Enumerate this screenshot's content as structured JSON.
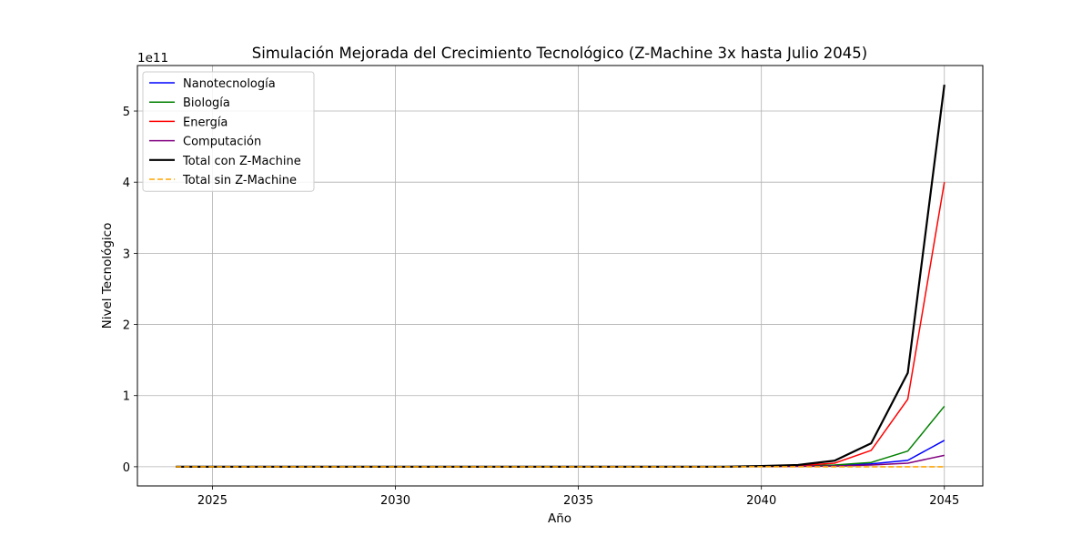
{
  "chart_data": {
    "type": "line",
    "title": "Simulación Mejorada del Crecimiento Tecnológico (Z-Machine 3x hasta Julio 2045)",
    "xlabel": "Año",
    "ylabel": "Nivel Tecnológico",
    "y_offset_label": "1e11",
    "xlim": [
      2022.95,
      2046.05
    ],
    "ylim": [
      -0.27,
      5.64
    ],
    "y_unit_scale": "1e11",
    "xticks": [
      2025,
      2030,
      2035,
      2040,
      2045
    ],
    "yticks": [
      0,
      1,
      2,
      3,
      4,
      5
    ],
    "grid": true,
    "legend_position": "upper-left",
    "x": [
      2024,
      2025,
      2026,
      2027,
      2028,
      2029,
      2030,
      2031,
      2032,
      2033,
      2034,
      2035,
      2036,
      2037,
      2038,
      2039,
      2040,
      2041,
      2042,
      2043,
      2044,
      2045
    ],
    "series": [
      {
        "name": "Nanotecnología",
        "color": "#0000ff",
        "style": "solid",
        "values": [
          0,
          0,
          0,
          0,
          0,
          0,
          0,
          0,
          0,
          0,
          0,
          0,
          0,
          0,
          0,
          0,
          0.003,
          0.008,
          0.02,
          0.04,
          0.09,
          0.37
        ]
      },
      {
        "name": "Biología",
        "color": "#008000",
        "style": "solid",
        "values": [
          0,
          0,
          0,
          0,
          0,
          0,
          0,
          0,
          0,
          0,
          0,
          0,
          0,
          0,
          0,
          0,
          0.004,
          0.012,
          0.025,
          0.06,
          0.22,
          0.85
        ]
      },
      {
        "name": "Energía",
        "color": "#ff0000",
        "style": "solid",
        "values": [
          0,
          0,
          0,
          0,
          0,
          0,
          0,
          0,
          0,
          0,
          0,
          0,
          0,
          0,
          0,
          0,
          0.006,
          0.015,
          0.05,
          0.23,
          0.95,
          4.0
        ]
      },
      {
        "name": "Computación",
        "color": "#800080",
        "style": "solid",
        "values": [
          0,
          0,
          0,
          0,
          0,
          0,
          0,
          0,
          0,
          0,
          0,
          0,
          0,
          0,
          0,
          0,
          0.002,
          0.005,
          0.01,
          0.025,
          0.05,
          0.16
        ]
      },
      {
        "name": "Total con Z-Machine",
        "color": "#000000",
        "style": "solid-thick",
        "values": [
          0,
          0,
          0,
          0,
          0,
          0,
          0,
          0,
          0,
          0,
          0,
          0,
          0,
          0,
          0,
          0,
          0.01,
          0.025,
          0.085,
          0.33,
          1.32,
          5.37
        ]
      },
      {
        "name": "Total sin Z-Machine",
        "color": "#ffa500",
        "style": "dashed",
        "values": [
          0,
          0,
          0,
          0,
          0,
          0,
          0,
          0,
          0,
          0,
          0,
          0,
          0,
          0,
          0,
          0,
          0,
          0,
          0,
          0,
          0,
          0
        ]
      }
    ]
  }
}
